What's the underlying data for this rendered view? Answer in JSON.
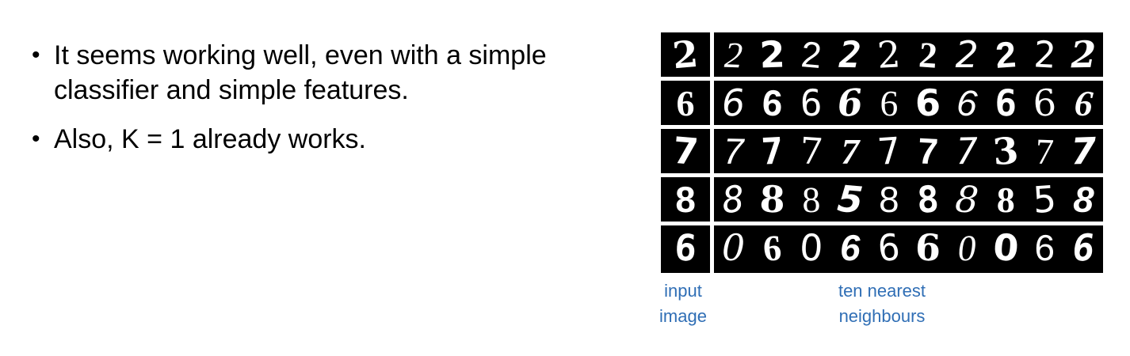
{
  "slide": {
    "bullets": [
      {
        "text": "It seems working well, even with a simple classifier and simple features."
      },
      {
        "text": "Also, K = 1 already works."
      }
    ],
    "bullet_symbol": "•"
  },
  "figure": {
    "rows": [
      {
        "input": "2",
        "neighbours": [
          "2",
          "2",
          "2",
          "2",
          "2",
          "2",
          "2",
          "2",
          "2",
          "2"
        ]
      },
      {
        "input": "6",
        "neighbours": [
          "6",
          "6",
          "6",
          "6",
          "6",
          "6",
          "6",
          "6",
          "6",
          "6"
        ]
      },
      {
        "input": "7",
        "neighbours": [
          "7",
          "7",
          "7",
          "7",
          "7",
          "7",
          "7",
          "3",
          "7",
          "7"
        ]
      },
      {
        "input": "8",
        "neighbours": [
          "8",
          "8",
          "8",
          "5",
          "8",
          "8",
          "8",
          "8",
          "5",
          "8"
        ]
      },
      {
        "input": "6",
        "neighbours": [
          "0",
          "6",
          "0",
          "6",
          "6",
          "6",
          "0",
          "0",
          "6",
          "6"
        ]
      }
    ],
    "captions": {
      "input_image": "input\nimage",
      "nearest": "ten nearest\nneighbours"
    },
    "colors": {
      "caption": "#2f6eb5",
      "background": "#000000",
      "digit": "#ffffff",
      "separator": "#ffffff"
    }
  }
}
